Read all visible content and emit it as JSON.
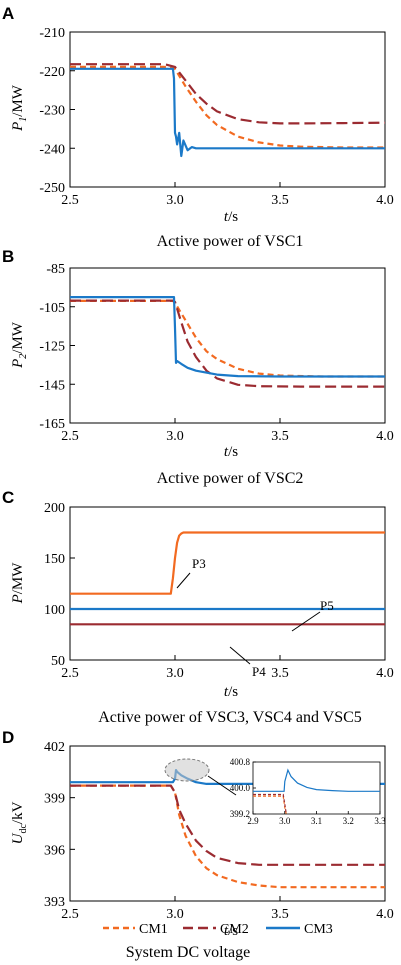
{
  "colors": {
    "cm1": "#f26a21",
    "cm2": "#9b2b31",
    "cm3": "#1b79c8",
    "p3": "#f26a21",
    "p4": "#9b2b31",
    "p5": "#1b79c8"
  },
  "legend": {
    "cm1": "CM1",
    "cm2": "CM2",
    "cm3": "CM3"
  },
  "chart_data": [
    {
      "id": "A",
      "type": "line",
      "panel_label": "A",
      "caption": "Active power of VSC1",
      "ylabel_main": "P",
      "ylabel_sub": "1",
      "ylabel_unit": "/MW",
      "xlabel_main": "t",
      "xlabel_unit": "/s",
      "xlim": [
        2.5,
        4.0
      ],
      "ylim": [
        -250,
        -210
      ],
      "xticks": [
        2.5,
        3.0,
        3.5,
        4.0
      ],
      "xtick_labels": [
        "2.5",
        "3.0",
        "3.5",
        "4.0"
      ],
      "yticks": [
        -210,
        -220,
        -230,
        -240,
        -250
      ],
      "ytick_labels": [
        "-210",
        "-220",
        "-230",
        "-240",
        "-250"
      ],
      "series": [
        {
          "name": "CM1",
          "x": [
            2.5,
            2.95,
            3.0,
            3.05,
            3.1,
            3.15,
            3.2,
            3.3,
            3.4,
            3.5,
            3.6,
            3.8,
            4.0
          ],
          "y": [
            -219,
            -219,
            -219.5,
            -224,
            -228,
            -231.5,
            -234,
            -237,
            -238.5,
            -239.3,
            -239.6,
            -239.8,
            -239.8
          ]
        },
        {
          "name": "CM2",
          "x": [
            2.5,
            2.95,
            3.0,
            3.05,
            3.1,
            3.15,
            3.2,
            3.3,
            3.4,
            3.5,
            3.6,
            3.8,
            4.0
          ],
          "y": [
            -218.3,
            -218.3,
            -219,
            -222.5,
            -226,
            -228.5,
            -230.5,
            -232.5,
            -233.3,
            -233.6,
            -233.6,
            -233.5,
            -233.4
          ]
        },
        {
          "name": "CM3",
          "x": [
            2.5,
            2.99,
            2.995,
            3.0,
            3.005,
            3.01,
            3.02,
            3.03,
            3.04,
            3.06,
            3.08,
            3.1,
            3.2,
            3.5,
            4.0
          ],
          "y": [
            -219.5,
            -219.5,
            -222,
            -236,
            -237,
            -239,
            -236,
            -242,
            -238,
            -240.5,
            -239.7,
            -240,
            -240,
            -240,
            -240
          ]
        }
      ]
    },
    {
      "id": "B",
      "type": "line",
      "panel_label": "B",
      "caption": "Active power of VSC2",
      "ylabel_main": "P",
      "ylabel_sub": "2",
      "ylabel_unit": "/MW",
      "xlabel_main": "t",
      "xlabel_unit": "/s",
      "xlim": [
        2.5,
        4.0
      ],
      "ylim": [
        -165,
        -85
      ],
      "xticks": [
        2.5,
        3.0,
        3.5,
        4.0
      ],
      "xtick_labels": [
        "2.5",
        "3.0",
        "3.5",
        "4.0"
      ],
      "yticks": [
        -85,
        -105,
        -125,
        -145,
        -165
      ],
      "ytick_labels": [
        "-85",
        "-105",
        "-125",
        "-145",
        "-165"
      ],
      "series": [
        {
          "name": "CM1",
          "x": [
            2.5,
            2.99,
            3.0,
            3.05,
            3.1,
            3.15,
            3.2,
            3.3,
            3.4,
            3.5,
            3.7,
            4.0
          ],
          "y": [
            -102,
            -102,
            -103,
            -112,
            -121,
            -128,
            -132,
            -137,
            -139.5,
            -140.5,
            -141,
            -141
          ]
        },
        {
          "name": "CM2",
          "x": [
            2.5,
            2.99,
            3.0,
            3.03,
            3.06,
            3.1,
            3.15,
            3.2,
            3.3,
            3.4,
            3.6,
            4.0
          ],
          "y": [
            -101.8,
            -101.8,
            -102.5,
            -113,
            -123,
            -131,
            -138,
            -142,
            -145.3,
            -146,
            -146.2,
            -146.2
          ]
        },
        {
          "name": "CM3",
          "x": [
            2.5,
            2.995,
            3.0,
            3.005,
            3.01,
            3.03,
            3.06,
            3.1,
            3.2,
            3.3,
            3.5,
            4.0
          ],
          "y": [
            -100,
            -100,
            -116,
            -134,
            -133,
            -134.5,
            -136.5,
            -138,
            -140,
            -140.8,
            -141,
            -141
          ]
        }
      ]
    },
    {
      "id": "C",
      "type": "line",
      "panel_label": "C",
      "caption": "Active power of VSC3, VSC4 and VSC5",
      "ylabel_main": "P",
      "ylabel_sub": "",
      "ylabel_unit": "/MW",
      "xlabel_main": "t",
      "xlabel_unit": "/s",
      "xlim": [
        2.5,
        4.0
      ],
      "ylim": [
        50,
        200
      ],
      "xticks": [
        2.5,
        3.0,
        3.5,
        4.0
      ],
      "xtick_labels": [
        "2.5",
        "3.0",
        "3.5",
        "4.0"
      ],
      "yticks": [
        50,
        100,
        150,
        200
      ],
      "ytick_labels": [
        "50",
        "100",
        "150",
        "200"
      ],
      "series": [
        {
          "name": "P3",
          "x": [
            2.5,
            2.98,
            2.99,
            3.0,
            3.01,
            3.02,
            3.03,
            3.04,
            3.06,
            3.1,
            4.0
          ],
          "y": [
            115,
            115,
            130,
            150,
            165,
            172,
            174,
            175,
            175,
            175,
            175
          ]
        },
        {
          "name": "P4",
          "x": [
            2.5,
            4.0
          ],
          "y": [
            85,
            85
          ]
        },
        {
          "name": "P5",
          "x": [
            2.5,
            4.0
          ],
          "y": [
            100,
            100
          ]
        }
      ],
      "annotations": {
        "p3": "P3",
        "p4": "P4",
        "p5": "P5"
      }
    },
    {
      "id": "D",
      "type": "line",
      "panel_label": "D",
      "caption": "System DC voltage",
      "ylabel_main": "U",
      "ylabel_sub": "dc",
      "ylabel_unit": "/kV",
      "xlabel_main": "t",
      "xlabel_unit": "/s",
      "xlim": [
        2.5,
        4.0
      ],
      "ylim": [
        393,
        402
      ],
      "xticks": [
        2.5,
        3.0,
        3.5,
        4.0
      ],
      "xtick_labels": [
        "2.5",
        "3.0",
        "3.5",
        "4.0"
      ],
      "yticks": [
        393,
        396,
        399,
        402
      ],
      "ytick_labels": [
        "393",
        "396",
        "399",
        "402"
      ],
      "series": [
        {
          "name": "CM1",
          "x": [
            2.5,
            2.98,
            3.0,
            3.02,
            3.05,
            3.1,
            3.15,
            3.2,
            3.3,
            3.4,
            3.5,
            3.7,
            4.0
          ],
          "y": [
            399.7,
            399.7,
            399.3,
            398,
            396.8,
            395.6,
            394.9,
            394.5,
            394.1,
            393.9,
            393.8,
            393.8,
            393.8
          ]
        },
        {
          "name": "CM2",
          "x": [
            2.5,
            2.98,
            3.0,
            3.02,
            3.05,
            3.1,
            3.15,
            3.2,
            3.3,
            3.4,
            3.6,
            4.0
          ],
          "y": [
            399.7,
            399.7,
            399.3,
            398.3,
            397.5,
            396.5,
            395.9,
            395.5,
            395.2,
            395.1,
            395.1,
            395.1
          ]
        },
        {
          "name": "CM3",
          "x": [
            2.5,
            2.99,
            3.0,
            3.005,
            3.01,
            3.03,
            3.06,
            3.1,
            3.15,
            3.2,
            3.5,
            4.0
          ],
          "y": [
            399.9,
            399.9,
            400.1,
            400.6,
            400.5,
            400.3,
            400.1,
            399.9,
            399.8,
            399.8,
            399.8,
            399.8
          ]
        }
      ],
      "inset": {
        "xlim": [
          2.9,
          3.3
        ],
        "ylim": [
          399.2,
          400.8
        ],
        "xticks": [
          2.9,
          3.0,
          3.1,
          3.2,
          3.3
        ],
        "xtick_labels": [
          "2.9",
          "3.0",
          "3.1",
          "3.2",
          "3.3"
        ],
        "yticks": [
          399.2,
          400.0,
          400.8
        ],
        "ytick_labels": [
          "399.2",
          "400.0",
          "400.8"
        ],
        "series": [
          {
            "name": "CM1",
            "x": [
              2.9,
              2.995,
              3.0,
              3.005
            ],
            "y": [
              399.75,
              399.75,
              399.4,
              399.2
            ]
          },
          {
            "name": "CM2",
            "x": [
              2.9,
              2.995,
              3.0,
              3.005
            ],
            "y": [
              399.8,
              399.8,
              399.5,
              399.2
            ]
          },
          {
            "name": "CM3",
            "x": [
              2.9,
              2.998,
              3.0,
              3.01,
              3.02,
              3.04,
              3.07,
              3.1,
              3.15,
              3.2,
              3.3
            ],
            "y": [
              399.9,
              399.9,
              400.2,
              400.55,
              400.35,
              400.15,
              400.02,
              399.95,
              399.92,
              399.9,
              399.9
            ]
          }
        ]
      }
    }
  ]
}
